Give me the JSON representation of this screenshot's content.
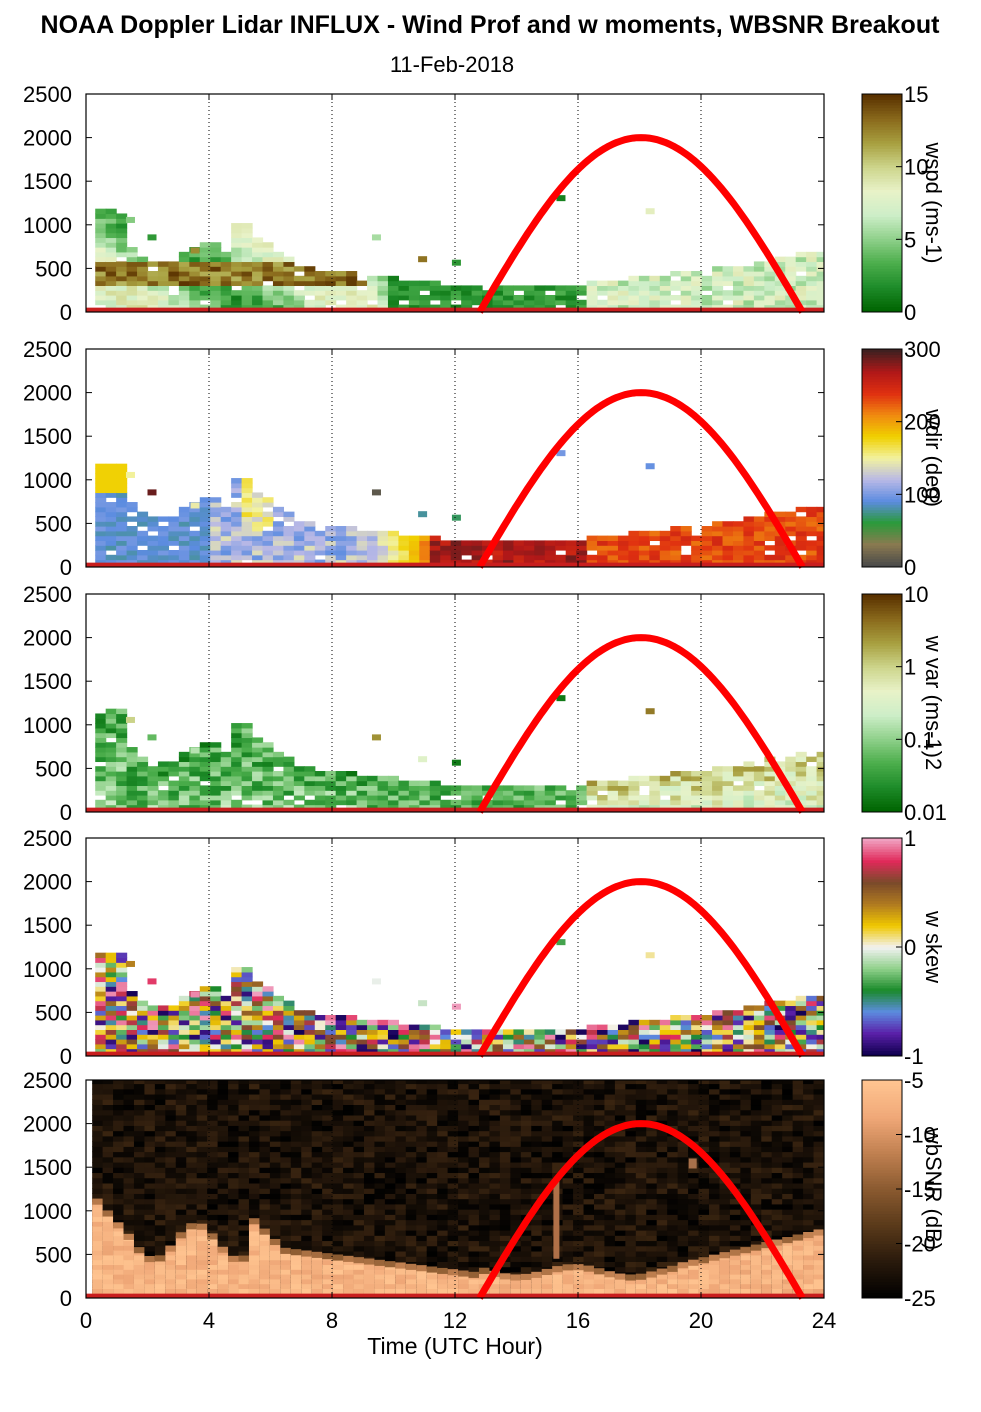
{
  "figure": {
    "title": "NOAA Doppler Lidar INFLUX - Wind Prof and w moments, WBSNR Breakout",
    "subtitle": "11-Feb-2018",
    "xlabel": "Time (UTC Hour)"
  },
  "chart_data": [
    {
      "type": "heatmap",
      "variable": "wspd",
      "colorbar_label": "wspd (ms-1)",
      "colorbar_ticks": [
        "0",
        "5",
        "10",
        "15"
      ],
      "clim": [
        0,
        15
      ],
      "colormap": [
        "#006400",
        "#1e8c2a",
        "#4cae4c",
        "#8fd08a",
        "#cdeec8",
        "#e8f2c8",
        "#cdd58c",
        "#a8a040",
        "#8a6a1c",
        "#5a3200"
      ],
      "x": [
        0,
        24
      ],
      "xlim": [
        0,
        24
      ],
      "xticks": [
        "0",
        "4",
        "8",
        "12",
        "16",
        "20",
        "24"
      ],
      "ylim": [
        0,
        2500
      ],
      "yticks": [
        "0",
        "500",
        "1000",
        "1500",
        "2000",
        "2500"
      ],
      "solar_elevation_curve": {
        "color": "#ff0000",
        "start_hour": 12.8,
        "peak_hour": 18,
        "end_hour": 23.3,
        "peak_height": 2000
      },
      "grid": "dotted vertical lines at 4-hour intervals"
    },
    {
      "type": "heatmap",
      "variable": "wdir",
      "colorbar_label": "wdir (deg)",
      "colorbar_ticks": [
        "0",
        "100",
        "200",
        "300"
      ],
      "clim": [
        0,
        360
      ],
      "colormap": [
        "#4a4a4a",
        "#8a7a50",
        "#2a9a3a",
        "#5c8ce0",
        "#b8b8e6",
        "#f2f2a0",
        "#f0d000",
        "#f08a10",
        "#e03010",
        "#b01818",
        "#402020"
      ],
      "x": [
        0,
        24
      ],
      "xlim": [
        0,
        24
      ],
      "xticks": [
        "0",
        "4",
        "8",
        "12",
        "16",
        "20",
        "24"
      ],
      "ylim": [
        0,
        2500
      ],
      "yticks": [
        "0",
        "500",
        "1000",
        "1500",
        "2000",
        "2500"
      ],
      "solar_elevation_curve": {
        "color": "#ff0000",
        "start_hour": 12.8,
        "peak_hour": 18,
        "end_hour": 23.3,
        "peak_height": 2000
      },
      "grid": "dotted vertical lines at 4-hour intervals"
    },
    {
      "type": "heatmap",
      "variable": "w var",
      "colorbar_label": "w var (ms-1)2",
      "colorbar_ticks": [
        "0.01",
        "0.1",
        "1",
        "10"
      ],
      "clim": [
        0.01,
        10
      ],
      "scale": "log",
      "colormap": [
        "#006400",
        "#1e8c2a",
        "#4cae4c",
        "#8fd08a",
        "#cdeec8",
        "#e8f2c8",
        "#cdd58c",
        "#a8a040",
        "#8a6a1c",
        "#5a3200"
      ],
      "x": [
        0,
        24
      ],
      "xlim": [
        0,
        24
      ],
      "xticks": [
        "0",
        "4",
        "8",
        "12",
        "16",
        "20",
        "24"
      ],
      "ylim": [
        0,
        2500
      ],
      "yticks": [
        "0",
        "500",
        "1000",
        "1500",
        "2000",
        "2500"
      ],
      "solar_elevation_curve": {
        "color": "#ff0000",
        "start_hour": 12.8,
        "peak_hour": 18,
        "end_hour": 23.3,
        "peak_height": 2000
      },
      "grid": "dotted vertical lines at 4-hour intervals"
    },
    {
      "type": "heatmap",
      "variable": "w skew",
      "colorbar_label": "w skew",
      "colorbar_ticks": [
        "-1",
        "0",
        "1"
      ],
      "clim": [
        -1,
        1
      ],
      "colormap": [
        "#100050",
        "#5a20a8",
        "#5c8ce0",
        "#1a8a2a",
        "#8fd08a",
        "#f2f2f2",
        "#f0c800",
        "#b07a20",
        "#7a4a2a",
        "#e02a5a",
        "#f0a0c0"
      ],
      "x": [
        0,
        24
      ],
      "xlim": [
        0,
        24
      ],
      "xticks": [
        "0",
        "4",
        "8",
        "12",
        "16",
        "20",
        "24"
      ],
      "ylim": [
        0,
        2500
      ],
      "yticks": [
        "0",
        "500",
        "1000",
        "1500",
        "2000",
        "2500"
      ],
      "solar_elevation_curve": {
        "color": "#ff0000",
        "start_hour": 12.8,
        "peak_hour": 18,
        "end_hour": 23.3,
        "peak_height": 2000
      },
      "grid": "dotted vertical lines at 4-hour intervals"
    },
    {
      "type": "heatmap",
      "variable": "wbSNR",
      "colorbar_label": "wbSNR (dB)",
      "colorbar_ticks": [
        "-25",
        "-20",
        "-15",
        "-10",
        "-5"
      ],
      "clim": [
        -25,
        -5
      ],
      "colormap": [
        "#000000",
        "#2a1a0c",
        "#5a3a1a",
        "#8a5a30",
        "#c08050",
        "#f0a878",
        "#ffc490"
      ],
      "x": [
        0,
        24
      ],
      "xlim": [
        0,
        24
      ],
      "xticks": [
        "0",
        "4",
        "8",
        "12",
        "16",
        "20",
        "24"
      ],
      "xtick_labels_shown": true,
      "ylim": [
        0,
        2500
      ],
      "yticks": [
        "0",
        "500",
        "1000",
        "1500",
        "2000",
        "2500"
      ],
      "solar_elevation_curve": {
        "color": "#ff0000",
        "start_hour": 12.8,
        "peak_hour": 18,
        "end_hour": 23.3,
        "peak_height": 2000
      },
      "grid": "dotted vertical lines at 4-hour intervals"
    }
  ]
}
